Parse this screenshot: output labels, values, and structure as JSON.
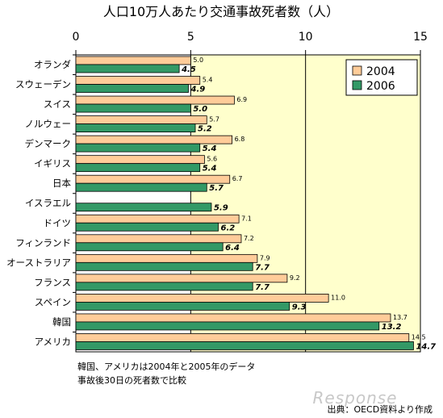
{
  "chart_data": {
    "type": "bar",
    "orientation": "horizontal",
    "title": "人口10万人あたり交通事故死者数（人）",
    "xlim": [
      0,
      15
    ],
    "xticks": [
      "0",
      "5",
      "10",
      "15"
    ],
    "categories": [
      "オランダ",
      "スウェーデン",
      "スイス",
      "ノルウェー",
      "デンマーク",
      "イギリス",
      "日本",
      "イスラエル",
      "ドイツ",
      "フィンランド",
      "オーストラリア",
      "フランス",
      "スペイン",
      "韓国",
      "アメリカ"
    ],
    "series": [
      {
        "name": "2004",
        "color": "#ffcc99",
        "values": [
          5.0,
          5.4,
          6.9,
          5.7,
          6.8,
          5.6,
          6.7,
          null,
          7.1,
          7.2,
          7.9,
          9.2,
          11.0,
          13.7,
          14.5
        ],
        "labels": [
          "5.0",
          "5.4",
          "6.9",
          "5.7",
          "6.8",
          "5.6",
          "6.7",
          "",
          "7.1",
          "7.2",
          "7.9",
          "9.2",
          "11.0",
          "13.7",
          "14.5"
        ]
      },
      {
        "name": "2006",
        "color": "#339966",
        "values": [
          4.5,
          4.9,
          5.0,
          5.2,
          5.4,
          5.4,
          5.7,
          5.9,
          6.2,
          6.4,
          7.7,
          7.7,
          9.3,
          13.2,
          14.7
        ],
        "labels": [
          "4.5",
          "4.9",
          "5.0",
          "5.2",
          "5.4",
          "5.4",
          "5.7",
          "5.9",
          "6.2",
          "6.4",
          "7.7",
          "7.7",
          "9.3",
          "13.2",
          "14.7"
        ]
      }
    ],
    "plot_background": "#ffffcc",
    "grid": "vertical at 10",
    "legend_position": "top-right"
  },
  "notes": [
    "韓国、アメリカは2004年と2005年のデータ",
    "事故後30日の死者数で比較"
  ],
  "source": "出典：OECD資料より作成",
  "watermark": "Response"
}
